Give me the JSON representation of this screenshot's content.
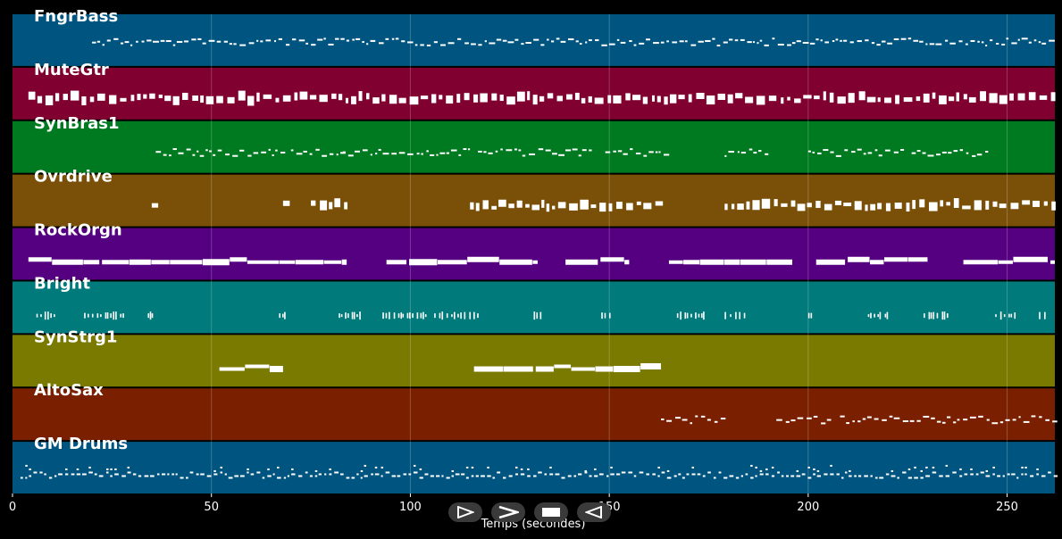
{
  "chart_data": {
    "type": "piano-roll",
    "xlabel": "Temps (secondes)",
    "xlim": [
      0,
      262
    ],
    "xticks": [
      0,
      50,
      100,
      150,
      200,
      250
    ],
    "grid": true,
    "tracks": [
      {
        "name": "FngrBass",
        "color": "#005580",
        "style": "dots",
        "segments": [
          [
            20,
            262
          ]
        ]
      },
      {
        "name": "MuteGtr",
        "color": "#800030",
        "style": "blocks",
        "segments": [
          [
            4,
            262
          ]
        ]
      },
      {
        "name": "SynBras1",
        "color": "#007a20",
        "style": "dots",
        "segments": [
          [
            36,
            68
          ],
          [
            70,
            83
          ],
          [
            83,
            115
          ],
          [
            117,
            146
          ],
          [
            149,
            165
          ],
          [
            179,
            190
          ],
          [
            200,
            224
          ],
          [
            226,
            245
          ]
        ]
      },
      {
        "name": "Ovrdrive",
        "color": "#7a5008",
        "style": "blocks",
        "segments": [
          [
            35,
            36
          ],
          [
            68,
            70
          ],
          [
            75,
            84
          ],
          [
            115,
            164
          ],
          [
            179,
            262
          ]
        ]
      },
      {
        "name": "RockOrgn",
        "color": "#550080",
        "style": "bar",
        "segments": [
          [
            4,
            84
          ],
          [
            94,
            132
          ],
          [
            139,
            155
          ],
          [
            165,
            196
          ],
          [
            202,
            230
          ],
          [
            239,
            262
          ]
        ]
      },
      {
        "name": "Bright",
        "color": "#007a7a",
        "style": "sparse",
        "segments": [
          [
            6,
            11
          ],
          [
            18,
            28
          ],
          [
            34,
            36
          ],
          [
            67,
            69
          ],
          [
            82,
            88
          ],
          [
            93,
            104
          ],
          [
            106,
            117
          ],
          [
            131,
            133
          ],
          [
            148,
            150
          ],
          [
            167,
            174
          ],
          [
            179,
            185
          ],
          [
            200,
            201
          ],
          [
            215,
            220
          ],
          [
            229,
            235
          ],
          [
            247,
            252
          ],
          [
            258,
            260
          ]
        ]
      },
      {
        "name": "SynStrg1",
        "color": "#7a7a00",
        "style": "bar",
        "segments": [
          [
            52,
            68
          ],
          [
            116,
            163
          ]
        ]
      },
      {
        "name": "AltoSax",
        "color": "#7a2000",
        "style": "dots",
        "segments": [
          [
            163,
            179
          ],
          [
            192,
            206
          ],
          [
            208,
            262
          ]
        ]
      },
      {
        "name": "GM Drums",
        "color": "#005580",
        "style": "drums",
        "segments": [
          [
            2,
            262
          ]
        ]
      }
    ]
  },
  "controls": {
    "play": "play-icon",
    "fast_forward": "fast-forward-icon",
    "stop": "stop-icon",
    "rewind": "rewind-icon"
  }
}
